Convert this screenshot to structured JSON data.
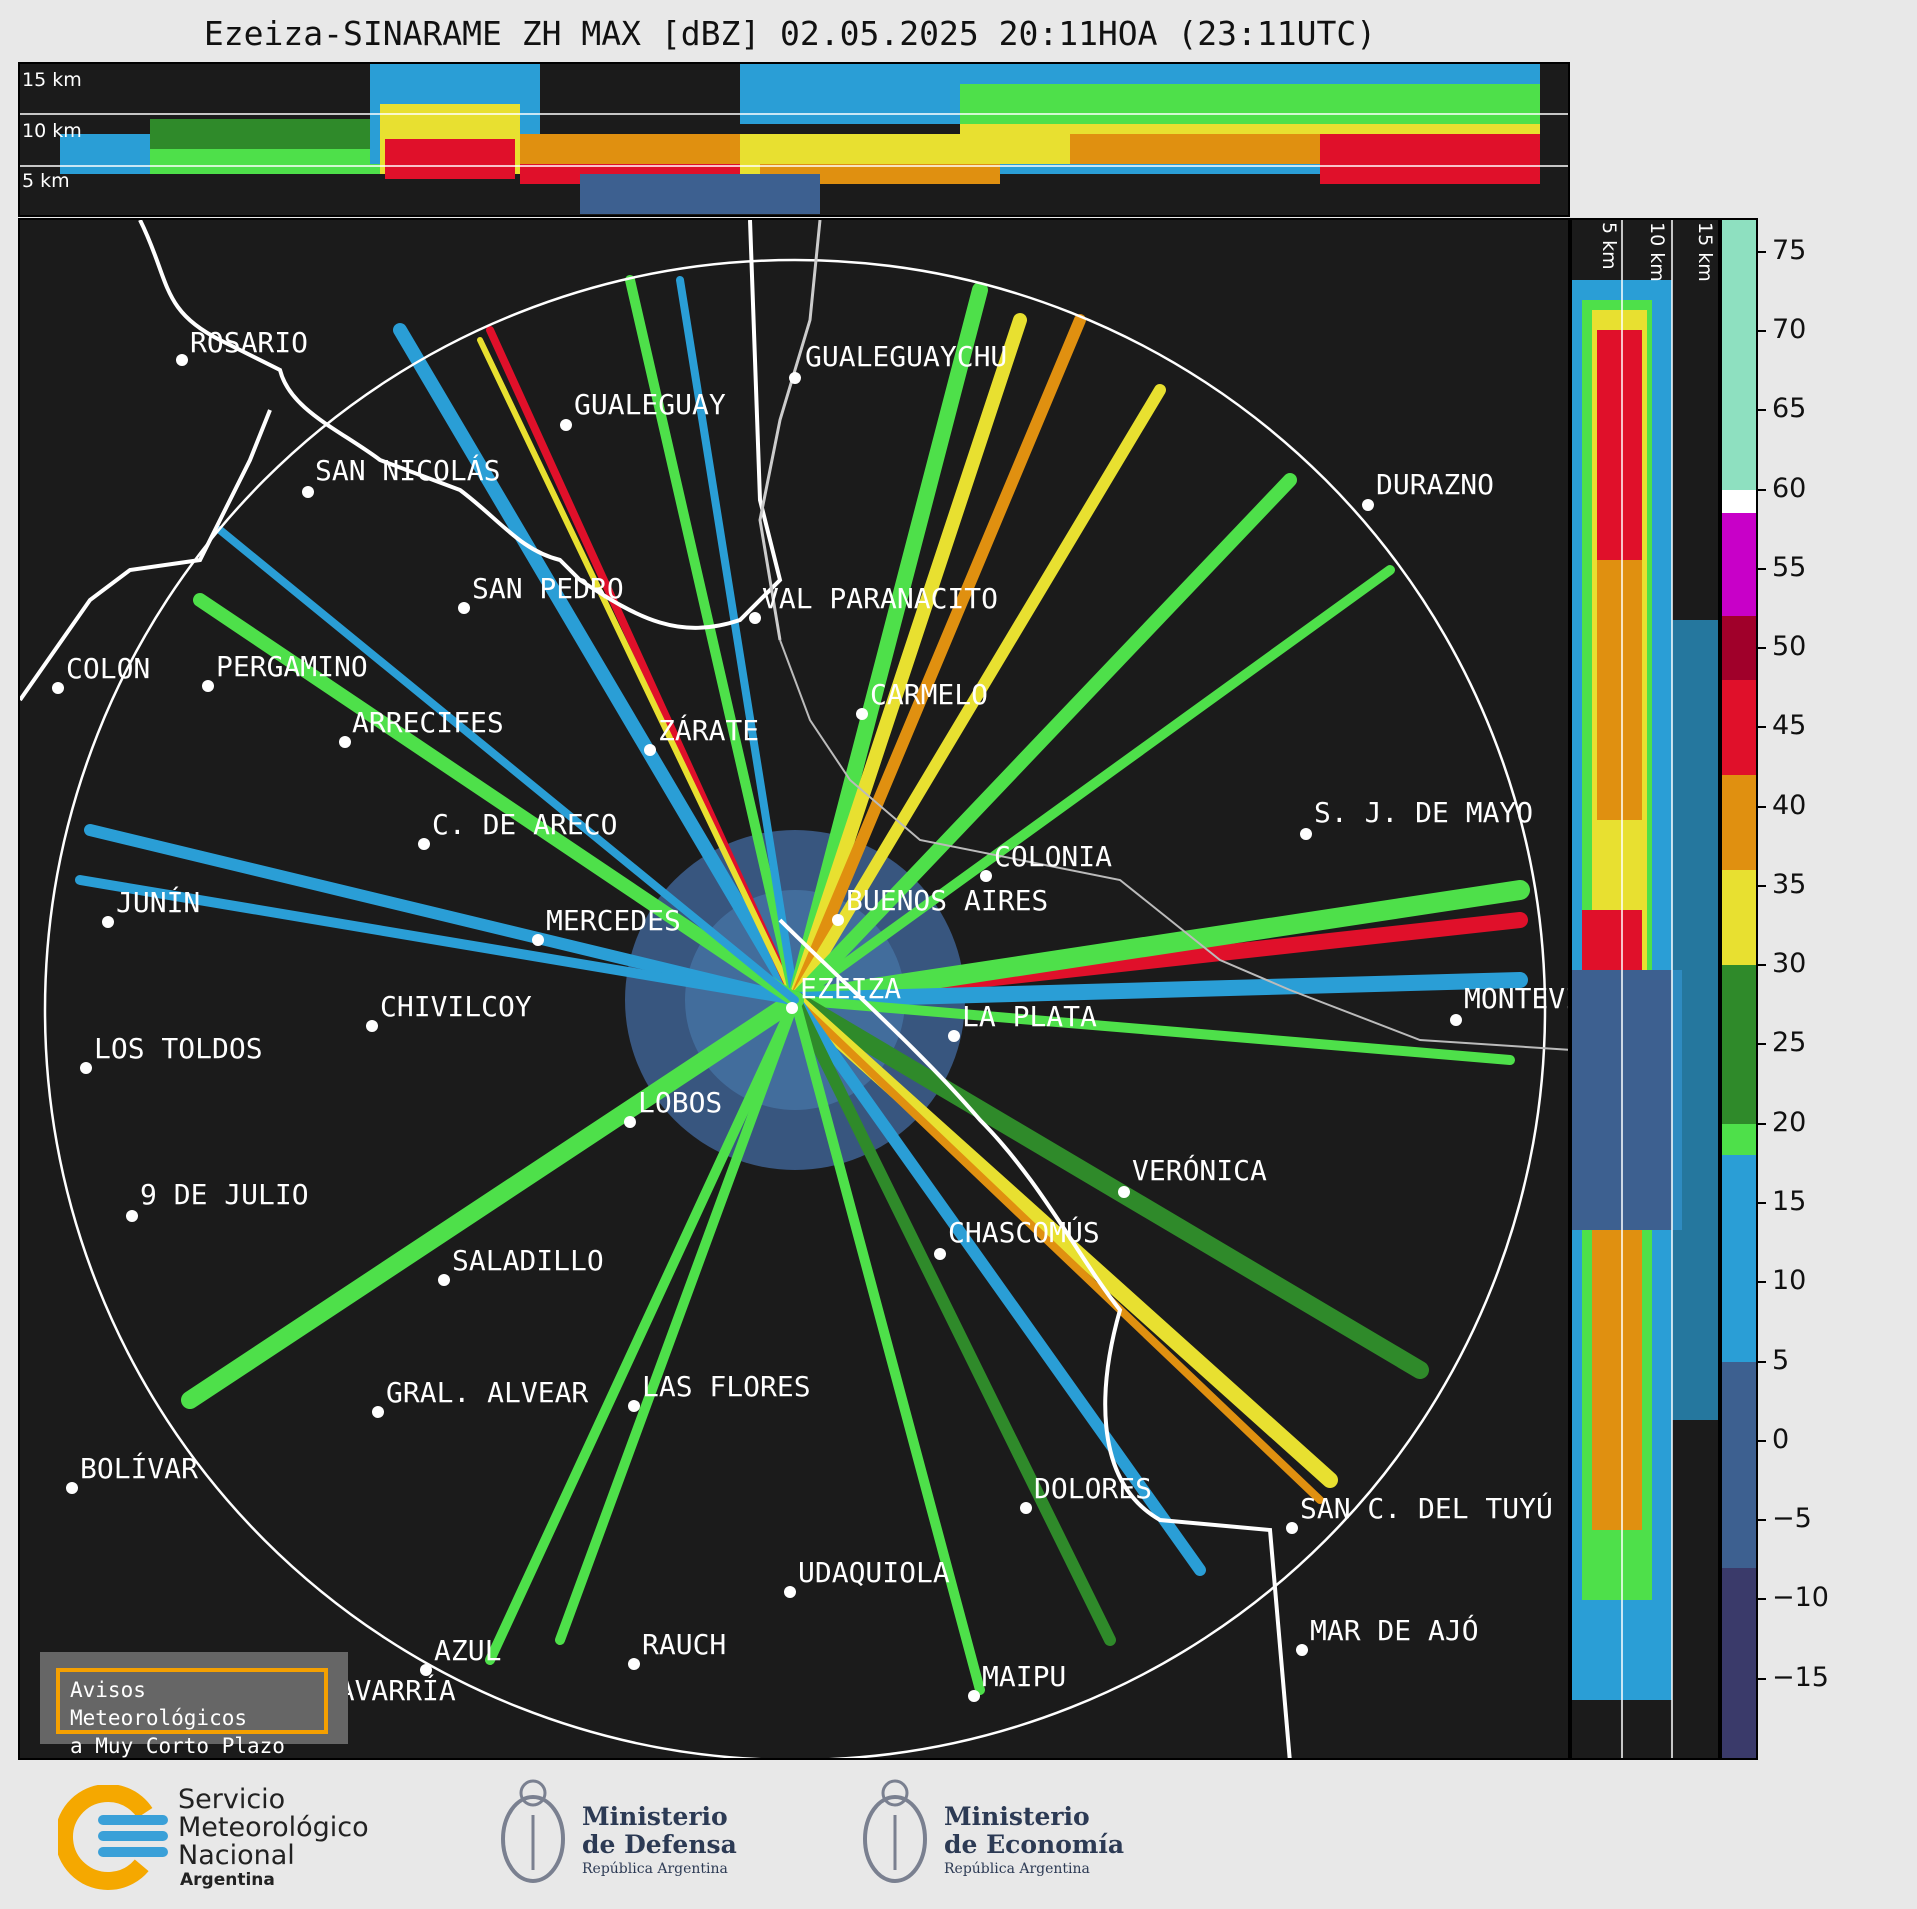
{
  "title": "Ezeiza-SINARAME ZH MAX [dBZ] 02.05.2025 20:11HOA (23:11UTC)",
  "top_panel": {
    "height_labels": [
      "15 km",
      "10 km",
      "5 km"
    ]
  },
  "side_panel": {
    "height_labels": [
      "5 km",
      "10 km",
      "15 km"
    ]
  },
  "cities": [
    {
      "name": "ROSARIO"
    },
    {
      "name": "GUALEGUAYCHU"
    },
    {
      "name": "GUALEGUAY"
    },
    {
      "name": "SAN NICOLÁS"
    },
    {
      "name": "DURAZNO"
    },
    {
      "name": "SAN PEDRO"
    },
    {
      "name": "VAL PARANACITO"
    },
    {
      "name": "COLON"
    },
    {
      "name": "PERGAMINO"
    },
    {
      "name": "CARMELO"
    },
    {
      "name": "ARRECIFES"
    },
    {
      "name": "ZÁRATE"
    },
    {
      "name": "S. J. DE MAYO"
    },
    {
      "name": "C. DE ARECO"
    },
    {
      "name": "COLONIA"
    },
    {
      "name": "JUNÍN"
    },
    {
      "name": "BUENOS AIRES"
    },
    {
      "name": "MERCEDES"
    },
    {
      "name": "EZEIZA"
    },
    {
      "name": "MONTEVIDEO"
    },
    {
      "name": "CHIVILCOY"
    },
    {
      "name": "LA PLATA"
    },
    {
      "name": "LOS TOLDOS"
    },
    {
      "name": "LOBOS"
    },
    {
      "name": "VERÓNICA"
    },
    {
      "name": "9 DE JULIO"
    },
    {
      "name": "CHASCOMÚS"
    },
    {
      "name": "SALADILLO"
    },
    {
      "name": "GRAL. ALVEAR"
    },
    {
      "name": "LAS FLORES"
    },
    {
      "name": "BOLÍVAR"
    },
    {
      "name": "DOLORES"
    },
    {
      "name": "SAN C. DEL TUYÚ"
    },
    {
      "name": "UDAQUIOLA"
    },
    {
      "name": "MAR DE AJÓ"
    },
    {
      "name": "AZUL"
    },
    {
      "name": "RAUCH"
    },
    {
      "name": "OLAVARRÍA"
    },
    {
      "name": "MAIPU"
    }
  ],
  "notice": {
    "line1": "Avisos Meteorológicos",
    "line2": "a Muy Corto Plazo"
  },
  "colorbar": {
    "unit": "dBZ",
    "ticks": [
      "75",
      "70",
      "65",
      "60",
      "55",
      "50",
      "45",
      "40",
      "35",
      "30",
      "25",
      "20",
      "15",
      "10",
      "5",
      "0",
      "−5",
      "−10",
      "−15"
    ],
    "tick_values": [
      75,
      70,
      65,
      60,
      55,
      50,
      45,
      40,
      35,
      30,
      25,
      20,
      15,
      10,
      5,
      0,
      -5,
      -10,
      -15
    ],
    "range": [
      -20,
      77
    ],
    "segments": [
      {
        "from": 60,
        "to": 77,
        "color": "#8ee0c0"
      },
      {
        "from": 58.5,
        "to": 60,
        "color": "#ffffff"
      },
      {
        "from": 52,
        "to": 58.5,
        "color": "#c800c8"
      },
      {
        "from": 48,
        "to": 52,
        "color": "#a0002a"
      },
      {
        "from": 42,
        "to": 48,
        "color": "#e0102a"
      },
      {
        "from": 36,
        "to": 42,
        "color": "#e09010"
      },
      {
        "from": 30,
        "to": 36,
        "color": "#e8e030"
      },
      {
        "from": 20,
        "to": 30,
        "color": "#2f8a2a"
      },
      {
        "from": 18,
        "to": 20,
        "color": "#4ee04a"
      },
      {
        "from": 5,
        "to": 18,
        "color": "#2a9ed6"
      },
      {
        "from": -8,
        "to": 5,
        "color": "#3d6090"
      },
      {
        "from": -20,
        "to": -8,
        "color": "#3a3a6a"
      }
    ]
  },
  "logos": {
    "smn": {
      "line1": "Servicio",
      "line2": "Meteorológico",
      "line3": "Nacional",
      "line4": "Argentina"
    },
    "defensa": {
      "line1": "Ministerio",
      "line2": "de Defensa",
      "line3": "República Argentina"
    },
    "economia": {
      "line1": "Ministerio",
      "line2": "de Economía",
      "line3": "República Argentina"
    }
  }
}
